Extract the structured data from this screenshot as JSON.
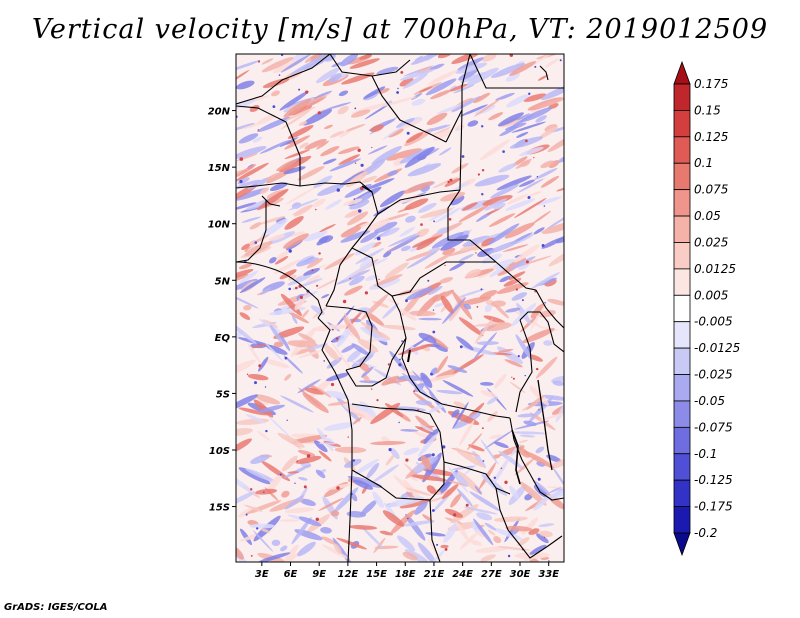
{
  "title": "Vertical velocity [m/s] at 700hPa, VT: 2019012509",
  "footer": "GrADS: IGES/COLA",
  "map": {
    "lat_labels": [
      "20N",
      "15N",
      "10N",
      "5N",
      "EQ",
      "5S",
      "10S",
      "15S"
    ],
    "lat_values": [
      20,
      15,
      10,
      5,
      0,
      -5,
      -10,
      -15
    ],
    "lon_labels": [
      "3E",
      "6E",
      "9E",
      "12E",
      "15E",
      "18E",
      "21E",
      "24E",
      "27E",
      "30E",
      "33E"
    ],
    "lon_values": [
      3,
      6,
      9,
      12,
      15,
      18,
      21,
      24,
      27,
      30,
      33
    ],
    "lon_range": [
      0.3,
      34.6
    ],
    "lat_range": [
      -19.9,
      25
    ]
  },
  "colorbar": {
    "labels": [
      "0.175",
      "0.15",
      "0.125",
      "0.1",
      "0.075",
      "0.05",
      "0.025",
      "0.0125",
      "0.005",
      "-0.005",
      "-0.0125",
      "-0.025",
      "-0.05",
      "-0.075",
      "-0.1",
      "-0.125",
      "-0.175",
      "-0.2"
    ],
    "colors": [
      "#a50f15",
      "#c0272d",
      "#d33f3f",
      "#e05b56",
      "#e8796f",
      "#ef958b",
      "#f5b2a9",
      "#f9cdc6",
      "#fce6e2",
      "#ffffff",
      "#e5e5fb",
      "#c9c9f6",
      "#aaaaf0",
      "#8c8ce8",
      "#6e6ee0",
      "#5050d6",
      "#3232c6",
      "#1a1ab0",
      "#0a0a8c"
    ]
  }
}
